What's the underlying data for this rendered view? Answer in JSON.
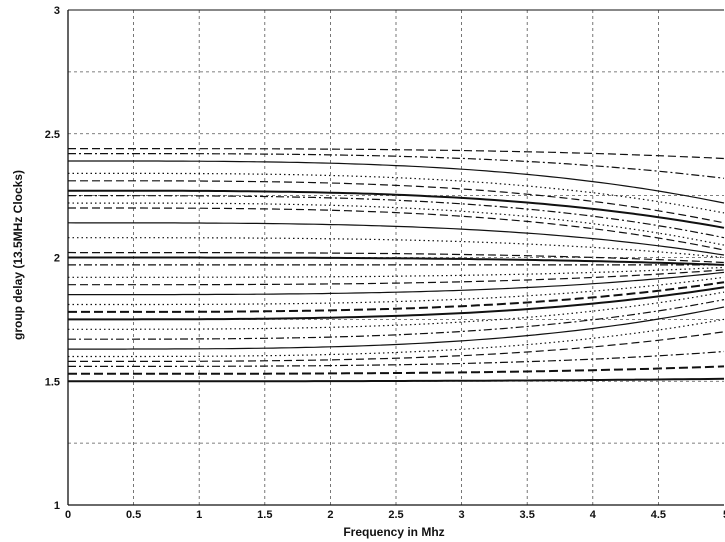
{
  "chart_data": {
    "type": "line",
    "title": "",
    "xlabel": "Frequency in Mhz",
    "ylabel": "group delay (13.5MHz Clocks)",
    "xlim": [
      0,
      5
    ],
    "ylim": [
      1,
      3
    ],
    "grid": true,
    "x_ticks": [
      "0",
      "0.5",
      "1",
      "1.5",
      "2",
      "2.5",
      "3",
      "3.5",
      "4",
      "4.5",
      "5"
    ],
    "y_ticks": [
      "1",
      "1.5",
      "2",
      "2.5",
      "3"
    ],
    "x_grid_step": 0.5,
    "y_grid_step": 0.25,
    "convergence_point": {
      "x": 5.0,
      "y": 1.97
    },
    "series": [
      {
        "style": "dashed",
        "start_y": 2.44,
        "end_y": 2.4
      },
      {
        "style": "dashdot",
        "start_y": 2.42,
        "end_y": 2.32
      },
      {
        "style": "solid",
        "start_y": 2.39,
        "end_y": 2.22
      },
      {
        "style": "dotted",
        "start_y": 2.34,
        "end_y": 2.18
      },
      {
        "style": "dashed",
        "start_y": 2.31,
        "end_y": 2.14
      },
      {
        "style": "solid-thick",
        "start_y": 2.27,
        "end_y": 2.12
      },
      {
        "style": "dashdot",
        "start_y": 2.25,
        "end_y": 2.08
      },
      {
        "style": "dotted",
        "start_y": 2.22,
        "end_y": 2.05
      },
      {
        "style": "dashed",
        "start_y": 2.2,
        "end_y": 2.03
      },
      {
        "style": "solid",
        "start_y": 2.14,
        "end_y": 2.01
      },
      {
        "style": "dotted",
        "start_y": 2.08,
        "end_y": 2.0
      },
      {
        "style": "dashed",
        "start_y": 2.02,
        "end_y": 1.98
      },
      {
        "style": "solid-thick",
        "start_y": 2.0,
        "end_y": 1.97
      },
      {
        "style": "dashdot",
        "start_y": 1.97,
        "end_y": 1.97
      },
      {
        "style": "dotted",
        "start_y": 1.92,
        "end_y": 1.96
      },
      {
        "style": "dashed",
        "start_y": 1.89,
        "end_y": 1.95
      },
      {
        "style": "solid",
        "start_y": 1.85,
        "end_y": 1.94
      },
      {
        "style": "dotted",
        "start_y": 1.81,
        "end_y": 1.92
      },
      {
        "style": "dashed-thick",
        "start_y": 1.78,
        "end_y": 1.9
      },
      {
        "style": "solid-thick",
        "start_y": 1.75,
        "end_y": 1.88
      },
      {
        "style": "dotted",
        "start_y": 1.71,
        "end_y": 1.86
      },
      {
        "style": "dashdot",
        "start_y": 1.67,
        "end_y": 1.83
      },
      {
        "style": "solid",
        "start_y": 1.63,
        "end_y": 1.8
      },
      {
        "style": "dotted",
        "start_y": 1.6,
        "end_y": 1.75
      },
      {
        "style": "dashed",
        "start_y": 1.58,
        "end_y": 1.7
      },
      {
        "style": "dashdot",
        "start_y": 1.56,
        "end_y": 1.62
      },
      {
        "style": "dashed-thick",
        "start_y": 1.53,
        "end_y": 1.56
      },
      {
        "style": "solid-thick",
        "start_y": 1.5,
        "end_y": 1.51
      }
    ]
  }
}
